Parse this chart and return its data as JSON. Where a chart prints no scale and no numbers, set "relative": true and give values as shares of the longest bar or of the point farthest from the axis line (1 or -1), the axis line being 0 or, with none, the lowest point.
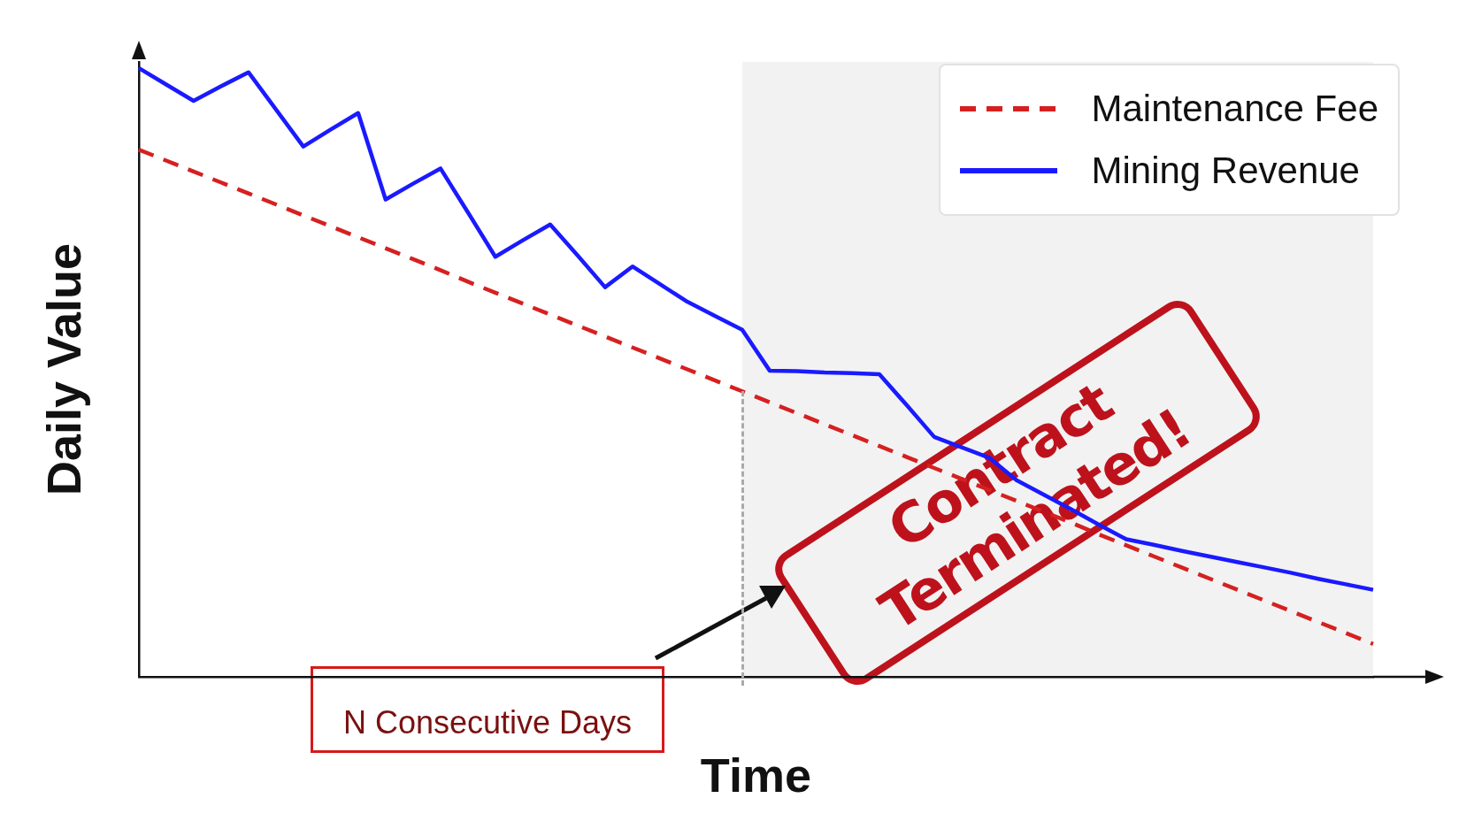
{
  "chart_data": {
    "type": "line",
    "relative": true,
    "xlabel": "Time",
    "ylabel": "Daily Value",
    "legend": "top right",
    "grid": false,
    "marker": "none",
    "categories": [
      null,
      null,
      null,
      null,
      null,
      null,
      null,
      null,
      null,
      null,
      null,
      null,
      null,
      null,
      null,
      null,
      null,
      null,
      null,
      null,
      null,
      null,
      null,
      null,
      null,
      null,
      null,
      null,
      null,
      null,
      null,
      null,
      null,
      null,
      null,
      null,
      null,
      null,
      null,
      null,
      null,
      null,
      null,
      null,
      null,
      null
    ],
    "series": [
      {
        "name": "Maintenance Fee",
        "color": "#d62020",
        "line_style": "dashed",
        "values": [
          0.866,
          0.848,
          0.83,
          0.812,
          0.794,
          0.776,
          0.758,
          0.74,
          0.722,
          0.704,
          0.686,
          0.668,
          0.649,
          0.631,
          0.613,
          0.595,
          0.577,
          0.559,
          0.541,
          0.523,
          0.505,
          0.487,
          0.469,
          0.451,
          0.433,
          0.415,
          0.397,
          0.379,
          0.361,
          0.343,
          0.325,
          0.307,
          0.289,
          0.271,
          0.253,
          0.234,
          0.216,
          0.198,
          0.18,
          0.162,
          0.144,
          0.126,
          0.108,
          0.09,
          0.072,
          0.054
        ]
      },
      {
        "name": "Mining Revenue",
        "color": "#1a1aff",
        "line_style": "solid",
        "values": [
          1,
          0.973,
          0.946,
          0.97,
          0.993,
          0.932,
          0.871,
          0.899,
          0.926,
          0.784,
          0.81,
          0.835,
          0.763,
          0.69,
          0.717,
          0.743,
          0.692,
          0.64,
          0.674,
          0.645,
          0.616,
          0.593,
          0.57,
          0.503,
          0.502,
          0.5,
          0.499,
          0.497,
          0.446,
          0.394,
          0.377,
          0.36,
          0.323,
          0.299,
          0.275,
          0.25,
          0.226,
          0.217,
          0.207,
          0.198,
          0.189,
          0.18,
          0.171,
          0.161,
          0.152,
          0.143
        ]
      }
    ],
    "annotations": [
      "N Consecutive Days",
      "Contract Terminated!"
    ]
  }
}
